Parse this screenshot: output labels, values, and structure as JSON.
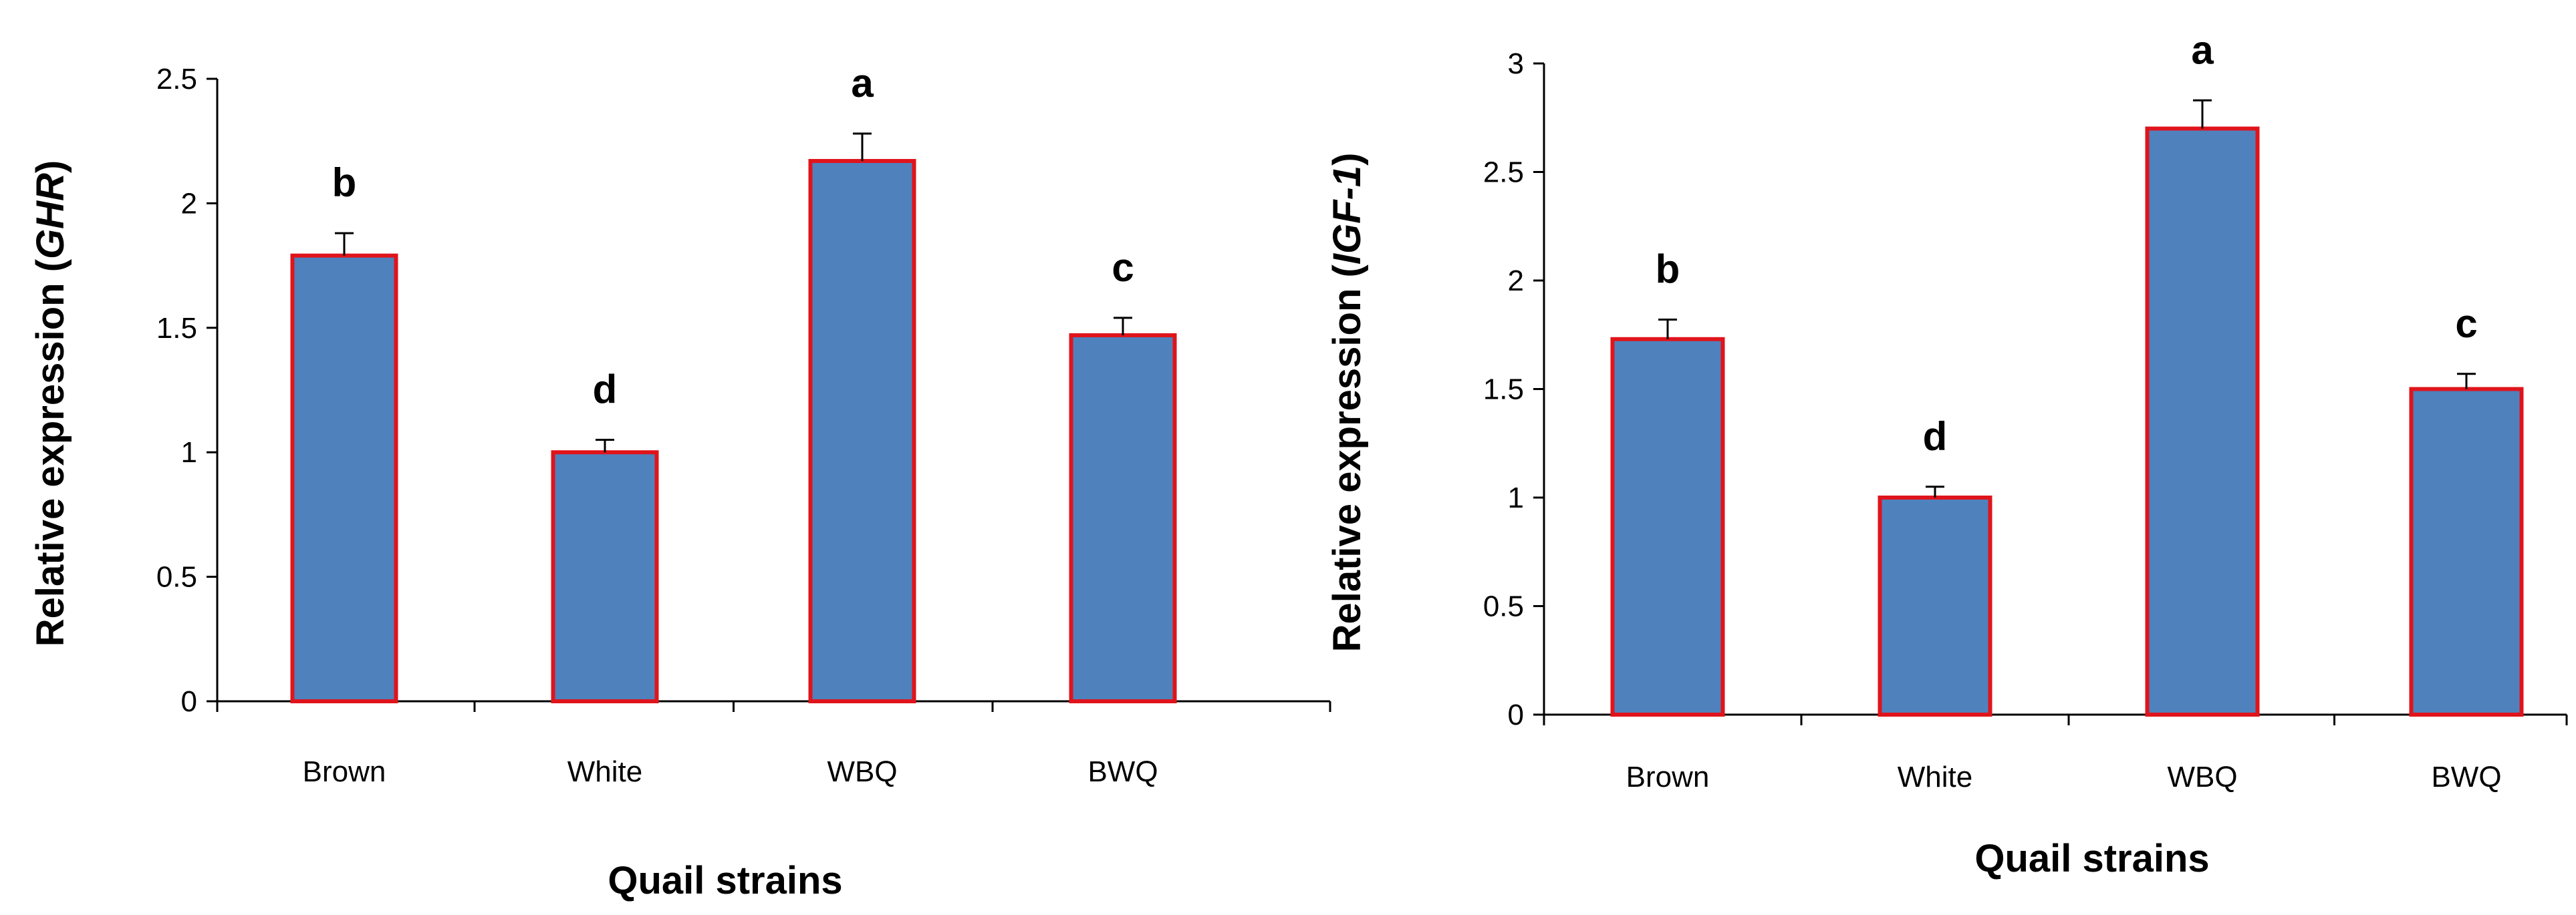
{
  "colors": {
    "bar_fill": "#4F81BD",
    "bar_stroke": "#E0141B",
    "axis": "#000000"
  },
  "chart_data": [
    {
      "type": "bar",
      "title": "",
      "xlabel": "Quail strains",
      "ylabel_prefix": "Relative expression (",
      "ylabel_gene": "GHR",
      "ylabel_suffix": ")",
      "categories": [
        "Brown",
        "White",
        "WBQ",
        "BWQ"
      ],
      "values": [
        1.79,
        1.0,
        2.17,
        1.47
      ],
      "errors": [
        0.09,
        0.05,
        0.11,
        0.07
      ],
      "significance": [
        "b",
        "d",
        "a",
        "c"
      ],
      "ylim": [
        0,
        2.5
      ],
      "yticks": [
        "0",
        "0.5",
        "1",
        "1.5",
        "2",
        "2.5"
      ],
      "grid": false
    },
    {
      "type": "bar",
      "title": "",
      "xlabel": "Quail strains",
      "ylabel_prefix": "Relative expression (",
      "ylabel_gene": "IGF-1",
      "ylabel_suffix": ")",
      "categories": [
        "Brown",
        "White",
        "WBQ",
        "BWQ"
      ],
      "values": [
        1.73,
        1.0,
        2.7,
        1.5
      ],
      "errors": [
        0.09,
        0.05,
        0.13,
        0.07
      ],
      "significance": [
        "b",
        "d",
        "a",
        "c"
      ],
      "ylim": [
        0,
        3
      ],
      "yticks": [
        "0",
        "0.5",
        "1",
        "1.5",
        "2",
        "2.5",
        "3"
      ],
      "grid": false
    }
  ]
}
